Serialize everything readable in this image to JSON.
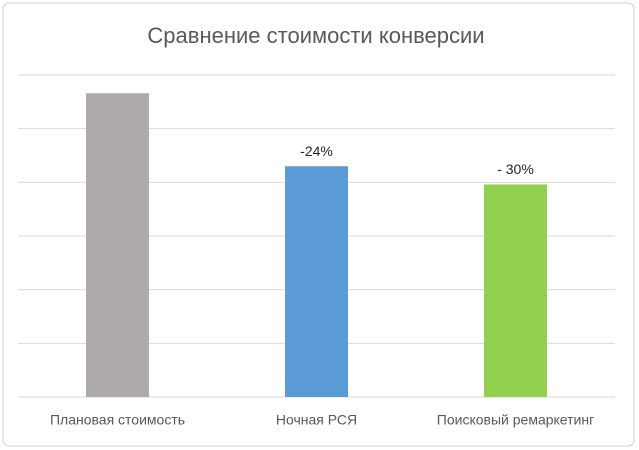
{
  "chart_data": {
    "type": "bar",
    "title": "Сравнение стоимости конверсии",
    "categories": [
      "Плановая стоимость",
      "Ночная РСЯ",
      "Поисковый ремаркетинг"
    ],
    "values": [
      5.66,
      4.3,
      3.96
    ],
    "colors": [
      "#aeaaaa",
      "#5b9bd5",
      "#92d050"
    ],
    "bar_labels": [
      null,
      "-24%",
      "- 30%"
    ],
    "ylim": [
      0,
      6
    ],
    "yticks": [
      0,
      1,
      2,
      3,
      4,
      5,
      6
    ],
    "grid": true
  }
}
